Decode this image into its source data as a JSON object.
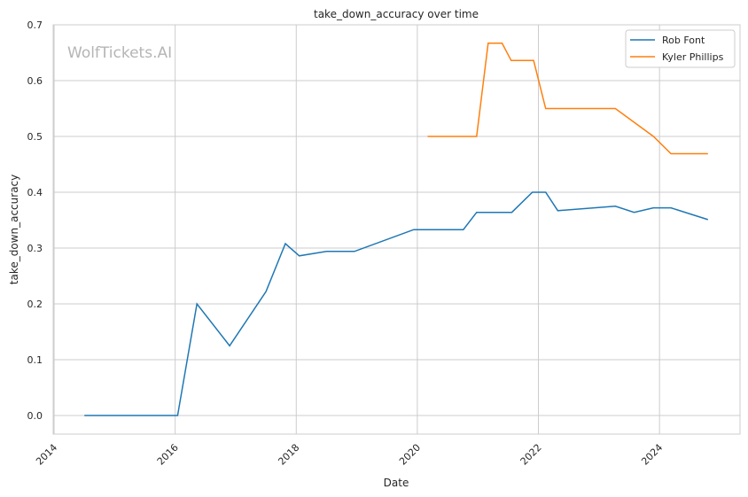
{
  "chart_data": {
    "type": "line",
    "title": "take_down_accuracy over time",
    "xlabel": "Date",
    "ylabel": "take_down_accuracy",
    "watermark": "WolfTickets.AI",
    "xlim": [
      2013.985,
      2025.33
    ],
    "ylim": [
      -0.0333,
      0.7
    ],
    "xticks": [
      2014,
      2016,
      2018,
      2020,
      2022,
      2024
    ],
    "xtick_labels": [
      "2014",
      "2016",
      "2018",
      "2020",
      "2022",
      "2024"
    ],
    "yticks": [
      0.0,
      0.1,
      0.2,
      0.3,
      0.4,
      0.5,
      0.6,
      0.7
    ],
    "ytick_labels": [
      "0.0",
      "0.1",
      "0.2",
      "0.3",
      "0.4",
      "0.5",
      "0.6",
      "0.7"
    ],
    "grid": true,
    "legend_position": "top-right",
    "series": [
      {
        "name": "Rob Font",
        "color": "#1f77b4",
        "x": [
          2014.5,
          2016.04,
          2016.36,
          2016.9,
          2017.5,
          2017.82,
          2018.05,
          2018.5,
          2018.96,
          2019.94,
          2020.76,
          2020.98,
          2021.56,
          2021.9,
          2022.12,
          2022.32,
          2023.27,
          2023.58,
          2023.9,
          2024.19,
          2024.8
        ],
        "y": [
          0,
          0,
          0.2,
          0.125,
          0.222,
          0.308,
          0.286,
          0.294,
          0.294,
          0.333,
          0.333,
          0.364,
          0.364,
          0.4,
          0.4,
          0.367,
          0.375,
          0.364,
          0.372,
          0.372,
          0.351
        ]
      },
      {
        "name": "Kyler Phillips",
        "color": "#ff7f0e",
        "x": [
          2020.17,
          2020.98,
          2021.17,
          2021.4,
          2021.55,
          2021.92,
          2022.12,
          2023.27,
          2023.9,
          2024.19,
          2024.8
        ],
        "y": [
          0.5,
          0.5,
          0.667,
          0.667,
          0.636,
          0.636,
          0.55,
          0.55,
          0.5,
          0.469,
          0.469
        ]
      }
    ]
  }
}
